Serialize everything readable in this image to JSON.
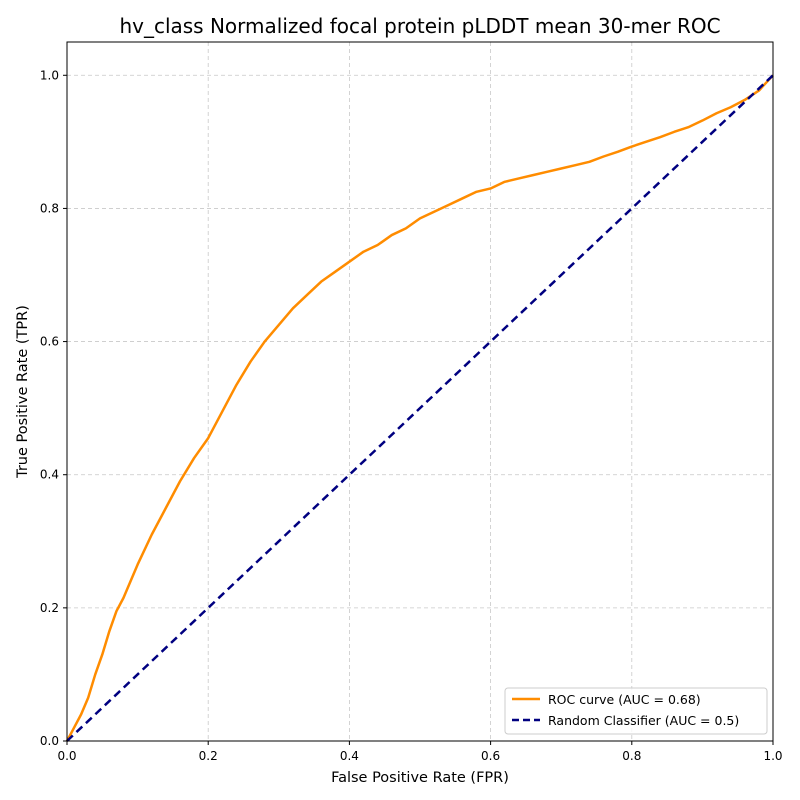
{
  "chart_data": {
    "type": "line",
    "title": "hv_class Normalized focal protein pLDDT mean 30-mer ROC",
    "xlabel": "False Positive Rate (FPR)",
    "ylabel": "True Positive Rate (TPR)",
    "xlim": [
      0.0,
      1.0
    ],
    "ylim": [
      0.0,
      1.05
    ],
    "xticks": [
      "0.0",
      "0.2",
      "0.4",
      "0.6",
      "0.8",
      "1.0"
    ],
    "yticks": [
      "0.0",
      "0.2",
      "0.4",
      "0.6",
      "0.8",
      "1.0"
    ],
    "grid": true,
    "legend_position": "bottom-right",
    "series": [
      {
        "name": "ROC curve (AUC = 0.68)",
        "color": "#ff8c00",
        "style": "solid",
        "x": [
          0.0,
          0.01,
          0.02,
          0.03,
          0.04,
          0.05,
          0.06,
          0.07,
          0.08,
          0.1,
          0.12,
          0.14,
          0.16,
          0.18,
          0.2,
          0.22,
          0.24,
          0.26,
          0.28,
          0.3,
          0.32,
          0.34,
          0.36,
          0.38,
          0.4,
          0.42,
          0.44,
          0.46,
          0.48,
          0.5,
          0.52,
          0.54,
          0.56,
          0.58,
          0.6,
          0.62,
          0.64,
          0.66,
          0.68,
          0.7,
          0.72,
          0.74,
          0.76,
          0.78,
          0.8,
          0.82,
          0.84,
          0.86,
          0.88,
          0.9,
          0.92,
          0.94,
          0.96,
          0.98,
          1.0
        ],
        "y": [
          0.0,
          0.02,
          0.04,
          0.065,
          0.1,
          0.13,
          0.165,
          0.195,
          0.215,
          0.265,
          0.31,
          0.35,
          0.39,
          0.425,
          0.455,
          0.495,
          0.535,
          0.57,
          0.6,
          0.625,
          0.65,
          0.67,
          0.69,
          0.705,
          0.72,
          0.735,
          0.745,
          0.76,
          0.77,
          0.785,
          0.795,
          0.805,
          0.815,
          0.825,
          0.83,
          0.84,
          0.845,
          0.85,
          0.855,
          0.86,
          0.865,
          0.87,
          0.878,
          0.885,
          0.893,
          0.9,
          0.907,
          0.915,
          0.922,
          0.932,
          0.943,
          0.952,
          0.963,
          0.977,
          1.0
        ]
      },
      {
        "name": "Random Classifier (AUC = 0.5)",
        "color": "#000080",
        "style": "dashed",
        "x": [
          0.0,
          1.0
        ],
        "y": [
          0.0,
          1.0
        ]
      }
    ]
  }
}
